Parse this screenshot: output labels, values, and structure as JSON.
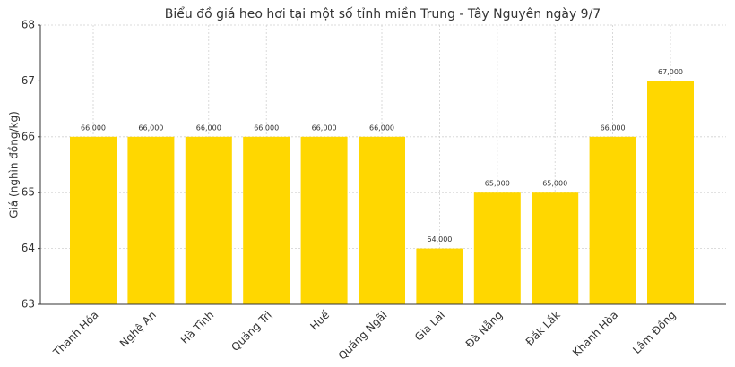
{
  "chart_data": {
    "type": "bar",
    "title": "Biểu đồ giá heo hơi tại một số tỉnh miền Trung - Tây Nguyên ngày 9/7",
    "y_label": "Giá (nghìn đồng/kg)",
    "categories": [
      "Thanh Hóa",
      "Nghệ An",
      "Hà Tĩnh",
      "Quảng Trị",
      "Huế",
      "Quảng Ngãi",
      "Gia Lai",
      "Đà Nẵng",
      "Đắk Lắk",
      "Khánh Hòa",
      "Lâm Đồng"
    ],
    "values": [
      66,
      66,
      66,
      66,
      66,
      66,
      64,
      65,
      65,
      66,
      67
    ],
    "value_labels": [
      "66,000",
      "66,000",
      "66,000",
      "66,000",
      "66,000",
      "66,000",
      "64,000",
      "65,000",
      "65,000",
      "66,000",
      "67,000"
    ],
    "color": "#ffd700",
    "ylim": [
      63,
      68
    ],
    "yticks": [
      63,
      64,
      65,
      66,
      67,
      68
    ],
    "grid": true
  }
}
